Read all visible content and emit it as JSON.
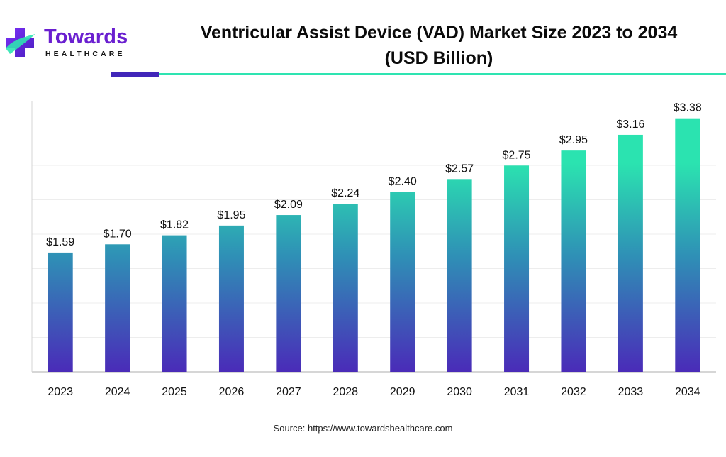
{
  "brand": {
    "name": "Towards",
    "tagline": "HEALTHCARE"
  },
  "title_line1": "Ventricular Assist Device (VAD) Market Size 2023 to 2034",
  "title_line2": "(USD Billion)",
  "source": "Source: https://www.towardshealthcare.com",
  "colors": {
    "bar_top": "#2be3b0",
    "bar_bottom": "#4a2bb8",
    "brand_purple": "#6a1fd0",
    "accent_teal": "#2ee4b1"
  },
  "chart_data": {
    "type": "bar",
    "title": "Ventricular Assist Device (VAD) Market Size 2023 to 2034 (USD Billion)",
    "categories": [
      "2023",
      "2024",
      "2025",
      "2026",
      "2027",
      "2028",
      "2029",
      "2030",
      "2031",
      "2032",
      "2033",
      "2034"
    ],
    "values": [
      1.59,
      1.7,
      1.82,
      1.95,
      2.09,
      2.24,
      2.4,
      2.57,
      2.75,
      2.95,
      3.16,
      3.38
    ],
    "labels": [
      "$1.59",
      "$1.70",
      "$1.82",
      "$1.95",
      "$2.09",
      "$2.24",
      "$2.40",
      "$2.57",
      "$2.75",
      "$2.95",
      "$3.16",
      "$3.38"
    ],
    "ylim": [
      0,
      3.5
    ],
    "grid": true,
    "legend": "none"
  }
}
